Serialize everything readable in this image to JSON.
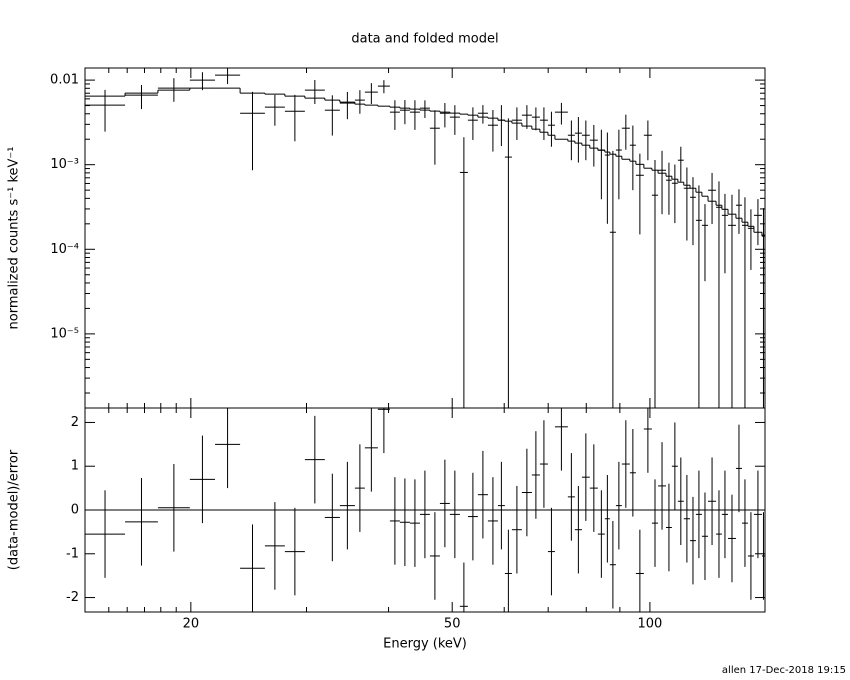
{
  "chart_data": [
    {
      "type": "errorbar",
      "title": "data and folded model",
      "y_label": "normalized counts s⁻¹ keV⁻¹",
      "log_x": true,
      "log_y": true,
      "xlim": [
        13.8,
        149.7
      ],
      "ylim": [
        1.33e-06,
        0.0139
      ],
      "yticks": [
        {
          "value": 0.01,
          "label": "0.01"
        },
        {
          "value": 0.001,
          "label": "10⁻³"
        },
        {
          "value": 0.0001,
          "label": "10⁻⁴"
        },
        {
          "value": 1e-05,
          "label": "10⁻⁵"
        }
      ],
      "yminor": [
        2e-06,
        3e-06,
        4e-06,
        5e-06,
        6e-06,
        7e-06,
        8e-06,
        9e-06,
        2e-05,
        3e-05,
        4e-05,
        5e-05,
        6e-05,
        7e-05,
        8e-05,
        9e-05,
        0.0002,
        0.0003,
        0.0004,
        0.0005,
        0.0006,
        0.0007,
        0.0008,
        0.0009,
        0.002,
        0.003,
        0.004,
        0.005,
        0.006,
        0.007,
        0.008,
        0.009
      ],
      "energy_lo": [
        13.8,
        15.88,
        17.82,
        19.93,
        21.77,
        23.77,
        25.93,
        27.81,
        29.83,
        31.99,
        33.72,
        35.55,
        36.81,
        38.53,
        40.19,
        41.62,
        43.11,
        44.65,
        46.24,
        47.89,
        49.59,
        51.36,
        52.83,
        54.71,
        56.67,
        58.69,
        60.14,
        61.64,
        63.84,
        66.11,
        68.0,
        69.94,
        71.68,
        75.0,
        76.87,
        78.78,
        81.0,
        83.32,
        85.39,
        86.9,
        88.76,
        90.63,
        93.2,
        95.2,
        97.9,
        100.7,
        102.9,
        105.8,
        108.0,
        110.3,
        112.6,
        115.1,
        117.5,
        120.0,
        122.6,
        126.1,
        128.7,
        131.5,
        135.2,
        138.1,
        141.0,
        144.0,
        148.1
      ],
      "energy_hi": [
        15.88,
        17.82,
        19.93,
        21.77,
        23.77,
        25.93,
        27.81,
        29.83,
        31.99,
        33.72,
        35.55,
        36.81,
        38.53,
        40.19,
        41.62,
        43.11,
        44.65,
        46.24,
        47.89,
        49.59,
        51.36,
        52.83,
        54.71,
        56.67,
        58.69,
        60.14,
        61.64,
        63.84,
        66.11,
        68.0,
        69.94,
        71.68,
        75.0,
        76.87,
        78.78,
        81.0,
        83.32,
        85.39,
        86.9,
        88.76,
        90.63,
        93.2,
        95.2,
        97.9,
        100.7,
        102.9,
        105.8,
        108.0,
        110.3,
        112.6,
        115.1,
        117.5,
        120.0,
        122.6,
        126.1,
        128.7,
        131.5,
        135.2,
        138.1,
        141.0,
        144.0,
        148.1,
        149.7
      ],
      "series": [
        {
          "color": "#000000",
          "values": [
            0.00506,
            0.00664,
            0.00804,
            0.01,
            0.01146,
            0.00406,
            0.00479,
            0.00429,
            0.00762,
            0.00441,
            0.00535,
            0.0058,
            0.00721,
            0.00849,
            0.00418,
            0.00441,
            0.00418,
            0.00466,
            0.0027,
            0.00406,
            0.00365,
            0.00081,
            0.00336,
            0.00406,
            0.00293,
            0.00336,
            0.00123,
            0.00336,
            0.00385,
            0.00365,
            0.00336,
            0.00293,
            0.00418,
            0.00223,
            0.00236,
            0.00223,
            0.00195,
            0.00149,
            0.0013,
            0.000159,
            0.00149,
            0.0027,
            0.0017,
            0.00075,
            0.00223,
            0.000436,
            0.00086,
            0.000656,
            0.000604,
            0.00113,
            0.000527,
            0.000412,
            0.00022,
            0.000192,
            0.000499,
            0.000314,
            0.000252,
            0.000192,
            0.000332,
            0.000192,
            0.000177,
            0.000252,
            0.000147
          ],
          "errors": [
            0.0026,
            0.0021,
            0.0025,
            0.0024,
            0.0025,
            0.0032,
            0.0019,
            0.0024,
            0.0024,
            0.0022,
            0.0019,
            0.0018,
            0.002,
            0.0015,
            0.0016,
            0.0014,
            0.0016,
            0.0011,
            0.0017,
            0.0013,
            0.0014,
            0.0013,
            0.0014,
            0.001,
            0.0015,
            0.0017,
            0.0023,
            0.0014,
            0.0012,
            0.0011,
            0.0014,
            0.0013,
            0.0012,
            0.0011,
            0.0013,
            0.0011,
            0.001,
            0.0011,
            0.0011,
            0.0013,
            0.0011,
            0.0012,
            0.0012,
            0.0006,
            0.0011,
            0.0007,
            0.0006,
            0.0004,
            0.0004,
            0.0005,
            0.0004,
            0.0003,
            0.00035,
            0.00015,
            0.0003,
            0.00032,
            0.0002,
            0.00025,
            0.00018,
            0.00022,
            0.00012,
            0.00014,
            0.00016
          ]
        },
        {
          "color": "#000000",
          "values": [
            0.00647,
            0.00702,
            0.00762,
            0.00804,
            0.00804,
            0.00702,
            0.00683,
            0.00647,
            0.00612,
            0.0058,
            0.00549,
            0.0052,
            0.00506,
            0.00492,
            0.00479,
            0.00466,
            0.00454,
            0.00442,
            0.0043,
            0.00418,
            0.00407,
            0.00396,
            0.00385,
            0.00365,
            0.00355,
            0.00336,
            0.00327,
            0.0031,
            0.00286,
            0.00263,
            0.00242,
            0.00223,
            0.002,
            0.0019,
            0.0018,
            0.0017,
            0.00157,
            0.00148,
            0.00141,
            0.00133,
            0.00126,
            0.00116,
            0.0011,
            0.00101,
            0.000909,
            0.000861,
            0.000793,
            0.000731,
            0.000674,
            0.000621,
            0.000572,
            0.000527,
            0.000473,
            0.000424,
            0.00037,
            0.000332,
            0.000297,
            0.00026,
            0.000233,
            0.000209,
            0.000187,
            0.000159,
            0.000143
          ]
        }
      ]
    },
    {
      "type": "residual",
      "x_label": "Energy (keV)",
      "y_label": "(data-model)/error",
      "xticks": [
        20,
        50,
        100
      ],
      "xminor": [
        15,
        16,
        17,
        18,
        19,
        30,
        40,
        60,
        70,
        80,
        90
      ],
      "ylim": [
        -2.33,
        2.33
      ],
      "yticks": [
        -2,
        -1,
        0,
        1,
        2
      ],
      "reference": 0,
      "reference_color": "#00e000",
      "series": [
        {
          "color": "#000000",
          "values": [
            -0.55,
            -0.27,
            0.05,
            0.7,
            1.5,
            -1.33,
            -0.82,
            -0.95,
            1.15,
            -0.17,
            0.1,
            0.5,
            1.42,
            2.3,
            -0.25,
            -0.28,
            -0.3,
            -0.1,
            -1.05,
            0.15,
            -0.1,
            -2.2,
            -0.15,
            0.35,
            -0.25,
            0.1,
            -1.45,
            -0.45,
            0.4,
            0.8,
            1.05,
            -0.95,
            1.9,
            0.3,
            -0.45,
            0.75,
            0.5,
            -0.55,
            -0.2,
            -1.25,
            0.1,
            1.05,
            0.85,
            -1.45,
            1.85,
            -0.3,
            0.55,
            -0.4,
            1.0,
            0.2,
            -0.2,
            -0.7,
            -0.1,
            -0.6,
            0.2,
            -0.55,
            -0.1,
            -0.65,
            0.95,
            -0.3,
            -1.05,
            -0.1,
            -1.05
          ],
          "errors": [
            1,
            1,
            1,
            1,
            1,
            1,
            1,
            1,
            1,
            1,
            1,
            1,
            1,
            1,
            1,
            1,
            1,
            1,
            1,
            1,
            1,
            1,
            1,
            1,
            1,
            1,
            1,
            1,
            1,
            1,
            1,
            1,
            1,
            1,
            1,
            1,
            1,
            1,
            1,
            1,
            1,
            1,
            1,
            1,
            1,
            1,
            1,
            1,
            1,
            1,
            1,
            1,
            1,
            1,
            1,
            1,
            1,
            1,
            1,
            1,
            1,
            1,
            1
          ]
        }
      ]
    }
  ],
  "footer": "allen 17-Dec-2018 19:15"
}
